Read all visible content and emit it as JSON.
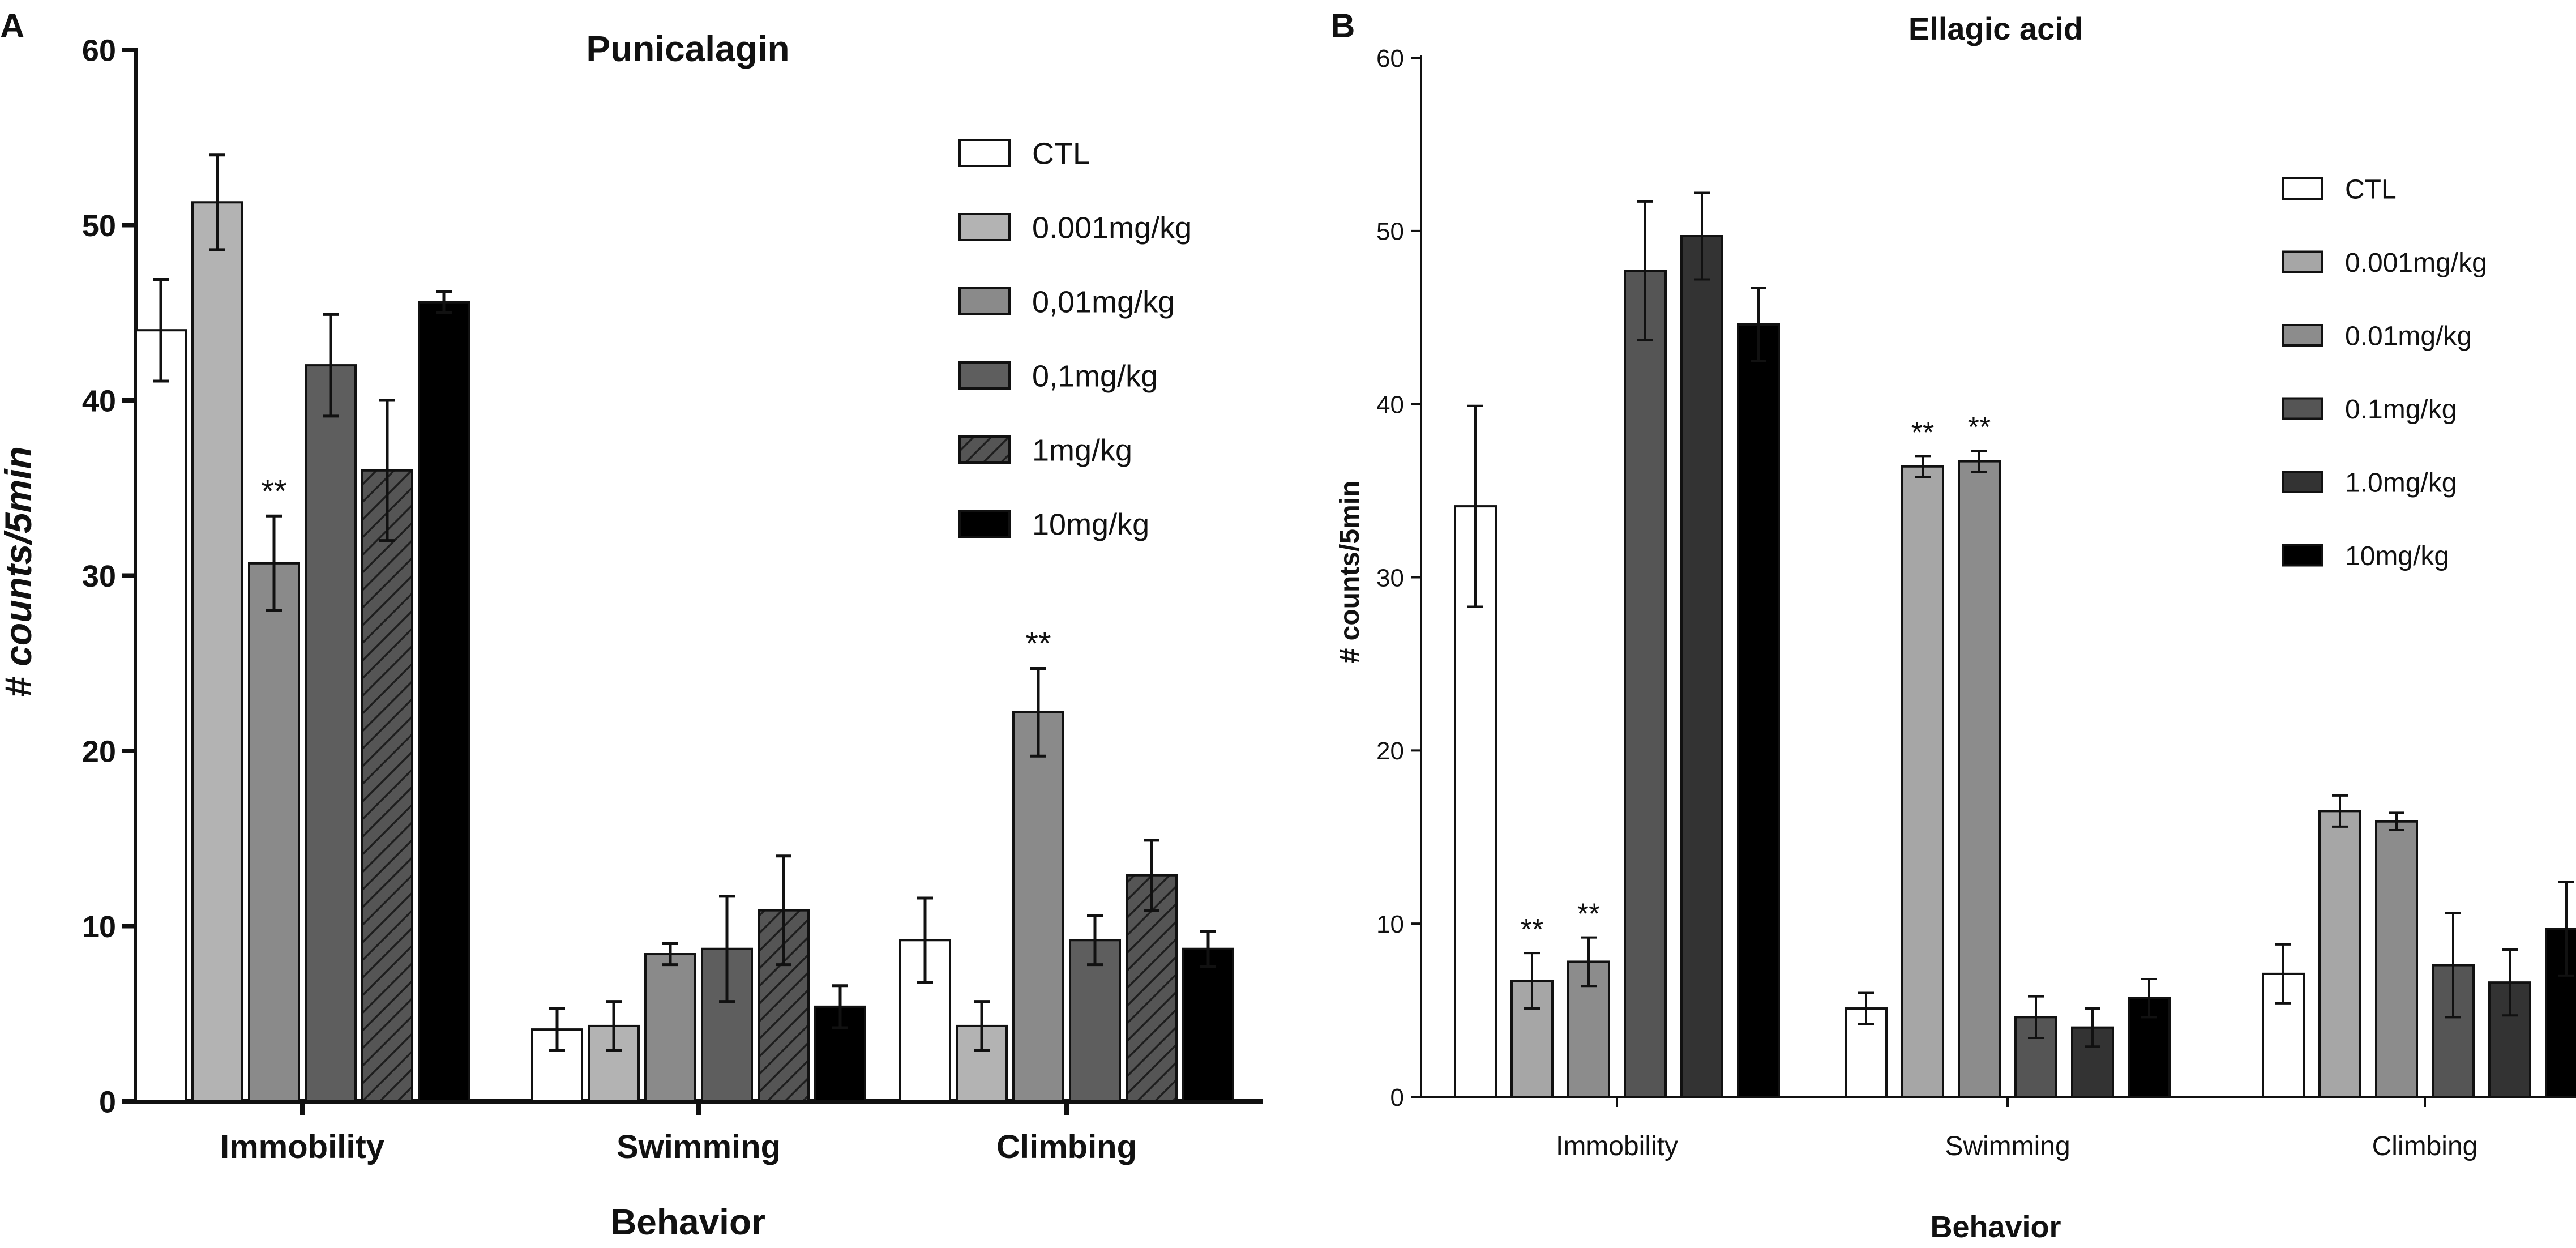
{
  "panel_labels": [
    "A",
    "B"
  ],
  "chart_data": [
    {
      "type": "bar",
      "panel": "A",
      "title": "Punicalagin",
      "xlabel": "Behavior",
      "ylabel": "# counts/5min",
      "ylim": [
        0,
        60
      ],
      "yticks": [
        0,
        10,
        20,
        30,
        40,
        50,
        60
      ],
      "categories": [
        "Immobility",
        "Swimming",
        "Climbing"
      ],
      "legend_position": "top-right",
      "series": [
        {
          "name": "CTL",
          "fill": "#ffffff",
          "pattern": "none",
          "values": [
            44.0,
            4.1,
            9.2
          ],
          "errors": [
            2.9,
            1.2,
            2.4
          ]
        },
        {
          "name": "0.001mg/kg",
          "fill": "#b3b3b3",
          "pattern": "none",
          "values": [
            51.3,
            4.3,
            4.3
          ],
          "errors": [
            2.7,
            1.4,
            1.4
          ]
        },
        {
          "name": "0,01mg/kg",
          "fill": "#8a8a8a",
          "pattern": "none",
          "values": [
            30.7,
            8.4,
            22.2
          ],
          "errors": [
            2.7,
            0.6,
            2.5
          ]
        },
        {
          "name": "0,1mg/kg",
          "fill": "#5e5e5e",
          "pattern": "none",
          "values": [
            42.0,
            8.7,
            9.2
          ],
          "errors": [
            2.9,
            3.0,
            1.4
          ]
        },
        {
          "name": "1mg/kg",
          "fill": "#4a4a4a",
          "pattern": "hatch",
          "values": [
            36.0,
            10.9,
            12.9
          ],
          "errors": [
            4.0,
            3.1,
            2.0
          ]
        },
        {
          "name": "10mg/kg",
          "fill": "#000000",
          "pattern": "none",
          "values": [
            45.6,
            5.4,
            8.7
          ],
          "errors": [
            0.6,
            1.2,
            1.0
          ]
        }
      ],
      "annotations": [
        {
          "text": "**",
          "category": "Immobility",
          "series": "0,01mg/kg"
        },
        {
          "text": "**",
          "category": "Climbing",
          "series": "0,01mg/kg"
        }
      ]
    },
    {
      "type": "bar",
      "panel": "B",
      "title": "Ellagic acid",
      "xlabel": "Behavior",
      "ylabel": "# counts/5min",
      "ylim": [
        0,
        60
      ],
      "yticks": [
        0,
        10,
        20,
        30,
        40,
        50,
        60
      ],
      "categories": [
        "Immobility",
        "Swimming",
        "Climbing"
      ],
      "legend_position": "top-right",
      "series": [
        {
          "name": "CTL",
          "fill": "#ffffff",
          "pattern": "none",
          "values": [
            34.1,
            5.1,
            7.1
          ],
          "errors": [
            5.8,
            0.9,
            1.7
          ]
        },
        {
          "name": "0.001mg/kg",
          "fill": "#a6a6a6",
          "pattern": "none",
          "values": [
            6.7,
            36.4,
            16.5
          ],
          "errors": [
            1.6,
            0.6,
            0.9
          ]
        },
        {
          "name": "0.01mg/kg",
          "fill": "#8c8c8c",
          "pattern": "none",
          "values": [
            7.8,
            36.7,
            15.9
          ],
          "errors": [
            1.4,
            0.6,
            0.5
          ]
        },
        {
          "name": "0.1mg/kg",
          "fill": "#555555",
          "pattern": "none",
          "values": [
            47.7,
            4.6,
            7.6
          ],
          "errors": [
            4.0,
            1.2,
            3.0
          ]
        },
        {
          "name": "1.0mg/kg",
          "fill": "#333333",
          "pattern": "none",
          "values": [
            49.7,
            4.0,
            6.6
          ],
          "errors": [
            2.5,
            1.1,
            1.9
          ]
        },
        {
          "name": "10mg/kg",
          "fill": "#000000",
          "pattern": "none",
          "values": [
            44.6,
            5.7,
            9.7
          ],
          "errors": [
            2.1,
            1.1,
            2.7
          ]
        }
      ],
      "annotations": [
        {
          "text": "**",
          "category": "Immobility",
          "series": "0.001mg/kg"
        },
        {
          "text": "**",
          "category": "Immobility",
          "series": "0.01mg/kg"
        },
        {
          "text": "**",
          "category": "Swimming",
          "series": "0.001mg/kg"
        },
        {
          "text": "**",
          "category": "Swimming",
          "series": "0.01mg/kg"
        }
      ]
    }
  ]
}
